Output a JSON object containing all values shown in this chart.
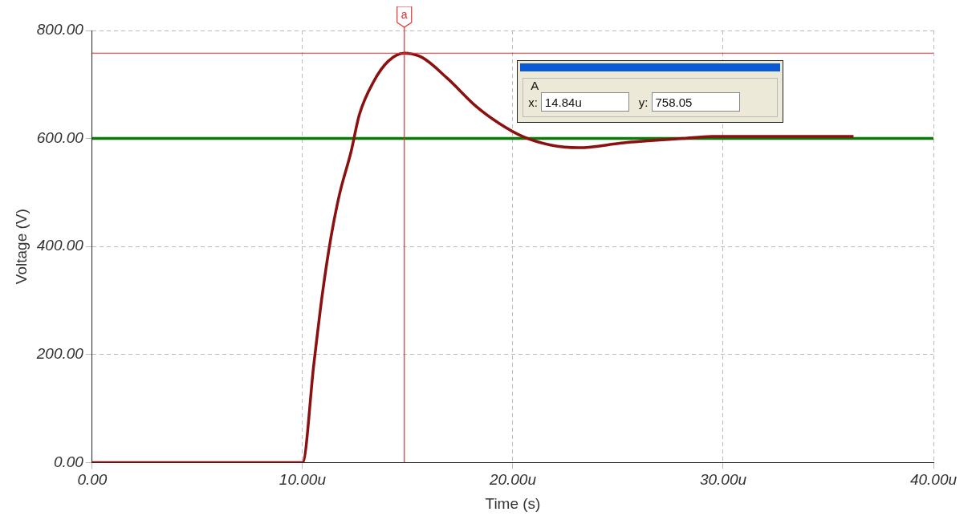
{
  "chart_data": {
    "type": "line",
    "xlabel": "Time (s)",
    "ylabel": "Voltage (V)",
    "xlim": [
      0,
      40
    ],
    "ylim": [
      0,
      800
    ],
    "xticks": [
      {
        "value": 0,
        "label": "0.00"
      },
      {
        "value": 10,
        "label": "10.00u"
      },
      {
        "value": 20,
        "label": "20.00u"
      },
      {
        "value": 30,
        "label": "30.00u"
      },
      {
        "value": 40,
        "label": "40.00u"
      }
    ],
    "yticks": [
      {
        "value": 0,
        "label": "0.00"
      },
      {
        "value": 200,
        "label": "200.00"
      },
      {
        "value": 400,
        "label": "400.00"
      },
      {
        "value": 600,
        "label": "600.00"
      },
      {
        "value": 800,
        "label": "800.00"
      }
    ],
    "grid": true,
    "legend": false,
    "marker": "none",
    "line_style": "solid",
    "series": [
      {
        "color": "#8b1010",
        "x": [
          0,
          10.0,
          10.54,
          10.95,
          11.36,
          11.76,
          12.31,
          12.7,
          13.39,
          14.07,
          14.84,
          15.69,
          16.9,
          18.27,
          19.35,
          20.45,
          21.79,
          23.16,
          25.27,
          28.08,
          29.47,
          36.2
        ],
        "values": [
          0,
          0,
          183,
          314,
          419,
          497,
          576,
          644,
          706,
          743,
          758,
          750,
          711,
          659,
          628,
          604,
          588,
          583,
          592,
          600,
          604,
          604
        ]
      },
      {
        "color": "#0a7a0a",
        "x": [
          0,
          40
        ],
        "values": [
          600,
          600
        ]
      }
    ],
    "ref_lines": [
      {
        "axis": "x",
        "value": 14.84,
        "label": "a",
        "color": "#e03030"
      },
      {
        "axis": "y",
        "value": 758.05,
        "color": "#e03030"
      }
    ],
    "annotations": [
      "A",
      "x:",
      "14.84u",
      "y:",
      "758.05"
    ]
  }
}
